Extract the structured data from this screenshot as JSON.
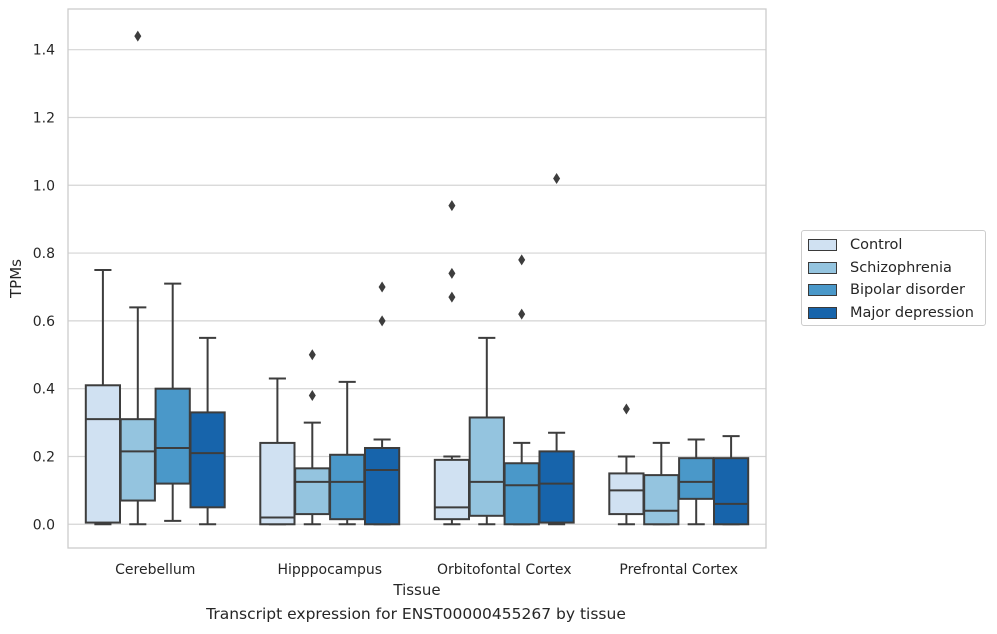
{
  "chart_data": {
    "type": "boxplot",
    "xlabel": "Tissue",
    "ylabel": "TPMs",
    "caption": "Transcript expression for ENST00000455267 by tissue",
    "ylim": [
      -0.07,
      1.52
    ],
    "yticks": [
      "0.0",
      "0.2",
      "0.4",
      "0.6",
      "0.8",
      "1.0",
      "1.2",
      "1.4"
    ],
    "grid": true,
    "legend_position": "right",
    "categories": [
      "Cerebellum",
      "Hipppocampus",
      "Orbitofontal Cortex",
      "Prefrontal Cortex"
    ],
    "series": [
      {
        "name": "Control",
        "color": "#d0e1f2",
        "boxes": [
          {
            "whislo": 0.0,
            "q1": 0.005,
            "med": 0.31,
            "q3": 0.41,
            "whishi": 0.75,
            "fliers": []
          },
          {
            "whislo": 0.0,
            "q1": 0.0,
            "med": 0.02,
            "q3": 0.24,
            "whishi": 0.43,
            "fliers": []
          },
          {
            "whislo": 0.0,
            "q1": 0.015,
            "med": 0.05,
            "q3": 0.19,
            "whishi": 0.2,
            "fliers": [
              0.67,
              0.74,
              0.94
            ]
          },
          {
            "whislo": 0.0,
            "q1": 0.03,
            "med": 0.1,
            "q3": 0.15,
            "whishi": 0.2,
            "fliers": [
              0.34
            ]
          }
        ]
      },
      {
        "name": "Schizophrenia",
        "color": "#94c4df",
        "boxes": [
          {
            "whislo": 0.0,
            "q1": 0.07,
            "med": 0.215,
            "q3": 0.31,
            "whishi": 0.64,
            "fliers": [
              1.44
            ]
          },
          {
            "whislo": 0.0,
            "q1": 0.03,
            "med": 0.125,
            "q3": 0.165,
            "whishi": 0.3,
            "fliers": [
              0.38,
              0.5
            ]
          },
          {
            "whislo": 0.0,
            "q1": 0.025,
            "med": 0.125,
            "q3": 0.315,
            "whishi": 0.55,
            "fliers": []
          },
          {
            "whislo": 0.0,
            "q1": 0.0,
            "med": 0.04,
            "q3": 0.145,
            "whishi": 0.24,
            "fliers": []
          }
        ]
      },
      {
        "name": "Bipolar disorder",
        "color": "#4a98c9",
        "boxes": [
          {
            "whislo": 0.01,
            "q1": 0.12,
            "med": 0.225,
            "q3": 0.4,
            "whishi": 0.71,
            "fliers": []
          },
          {
            "whislo": 0.0,
            "q1": 0.015,
            "med": 0.125,
            "q3": 0.205,
            "whishi": 0.42,
            "fliers": []
          },
          {
            "whislo": 0.0,
            "q1": 0.0,
            "med": 0.115,
            "q3": 0.18,
            "whishi": 0.24,
            "fliers": [
              0.62,
              0.78
            ]
          },
          {
            "whislo": 0.0,
            "q1": 0.075,
            "med": 0.125,
            "q3": 0.195,
            "whishi": 0.25,
            "fliers": []
          }
        ]
      },
      {
        "name": "Major depression",
        "color": "#1764ab",
        "boxes": [
          {
            "whislo": 0.0,
            "q1": 0.05,
            "med": 0.21,
            "q3": 0.33,
            "whishi": 0.55,
            "fliers": []
          },
          {
            "whislo": 0.0,
            "q1": 0.0,
            "med": 0.16,
            "q3": 0.225,
            "whishi": 0.25,
            "fliers": [
              0.6,
              0.7
            ]
          },
          {
            "whislo": 0.0,
            "q1": 0.005,
            "med": 0.12,
            "q3": 0.215,
            "whishi": 0.27,
            "fliers": [
              1.02
            ]
          },
          {
            "whislo": 0.0,
            "q1": 0.0,
            "med": 0.06,
            "q3": 0.195,
            "whishi": 0.26,
            "fliers": []
          }
        ]
      }
    ]
  }
}
